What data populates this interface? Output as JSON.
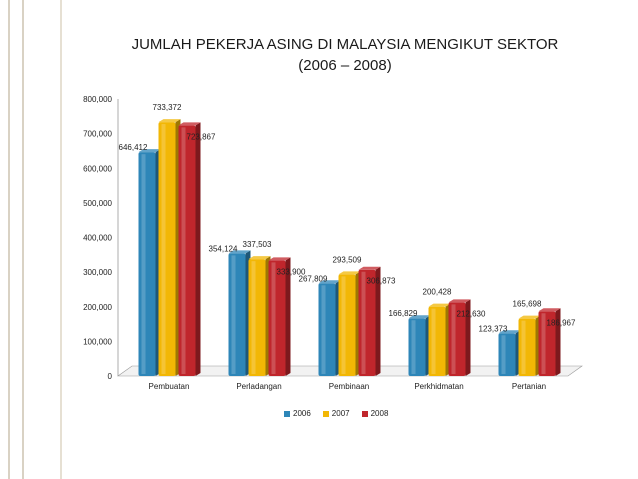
{
  "chart_data": {
    "type": "bar",
    "title": "JUMLAH PEKERJA ASING DI MALAYSIA MENGIKUT SEKTOR",
    "subtitle": "(2006 – 2008)",
    "xlabel": "",
    "ylabel": "",
    "ylim": [
      0,
      800000
    ],
    "yticks": [
      "0",
      "100,000",
      "200,000",
      "300,000",
      "400,000",
      "500,000",
      "600,000",
      "700,000",
      "800,000"
    ],
    "categories": [
      "Pembuatan",
      "Perladangan",
      "Pembinaan",
      "Perkhidmatan",
      "Pertanian"
    ],
    "series": [
      {
        "name": "2006",
        "color": "#2e86b8",
        "values": [
          646412,
          354124,
          267809,
          166829,
          123373
        ],
        "labels": [
          "646,412",
          "354,124",
          "267,809",
          "166,829",
          "123,373"
        ]
      },
      {
        "name": "2007",
        "color": "#f2b705",
        "values": [
          733372,
          337503,
          293509,
          200428,
          165698
        ],
        "labels": [
          "733,372",
          "337,503",
          "293,509",
          "200,428",
          "165,698"
        ]
      },
      {
        "name": "2008",
        "color": "#c0262c",
        "values": [
          723867,
          333900,
          306873,
          212630,
          186967
        ],
        "labels": [
          "723,867",
          "333,900",
          "306,873",
          "212,630",
          "186,967"
        ]
      }
    ],
    "grid": false,
    "legend": "bottom"
  }
}
